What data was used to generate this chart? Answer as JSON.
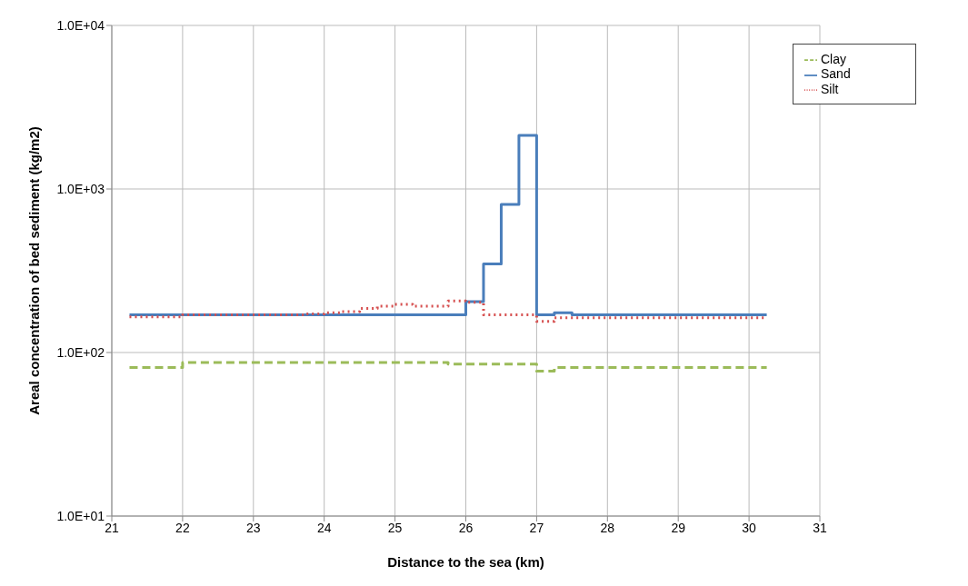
{
  "chart_data": {
    "type": "step",
    "xlabel": "Distance to the sea (km)",
    "ylabel": "Areal concentration of bed sediment (kg/m2)",
    "log": "y",
    "grid": true,
    "legend": "top right",
    "xlim": [
      21,
      31
    ],
    "xticks": [
      21,
      22,
      23,
      24,
      25,
      26,
      27,
      28,
      29,
      30,
      31
    ],
    "ylim": [
      10,
      10000
    ],
    "yticks": [
      {
        "value": 10,
        "label": "1.0E+01"
      },
      {
        "value": 100,
        "label": "1.0E+02"
      },
      {
        "value": 1000,
        "label": "1.0E+03"
      },
      {
        "value": 10000,
        "label": "1.0E+04"
      }
    ],
    "series": [
      {
        "name": "Sand",
        "color": "#4a7ebb",
        "line_style": "solid",
        "x": [
          21.25,
          26,
          26.25,
          26.5,
          26.75,
          27,
          27.25,
          27.5,
          30.25
        ],
        "values": [
          170,
          205,
          348,
          805,
          2130,
          170,
          175,
          170,
          170
        ]
      },
      {
        "name": "Silt",
        "color": "#d64f4f",
        "line_style": "dotted",
        "x": [
          21.25,
          22,
          23.75,
          24,
          24.25,
          24.5,
          24.75,
          25,
          25.25,
          25.75,
          26,
          26.25,
          27,
          27.25,
          30.25
        ],
        "values": [
          165,
          170,
          172,
          175,
          178,
          186,
          192,
          197,
          192,
          207,
          203,
          170,
          155,
          163,
          163
        ]
      },
      {
        "name": "Clay",
        "color": "#9bbb59",
        "line_style": "dashed",
        "x": [
          21.25,
          22,
          25.75,
          27,
          27.25,
          30.25
        ],
        "values": [
          81,
          87,
          85,
          77,
          81,
          81
        ]
      }
    ]
  }
}
